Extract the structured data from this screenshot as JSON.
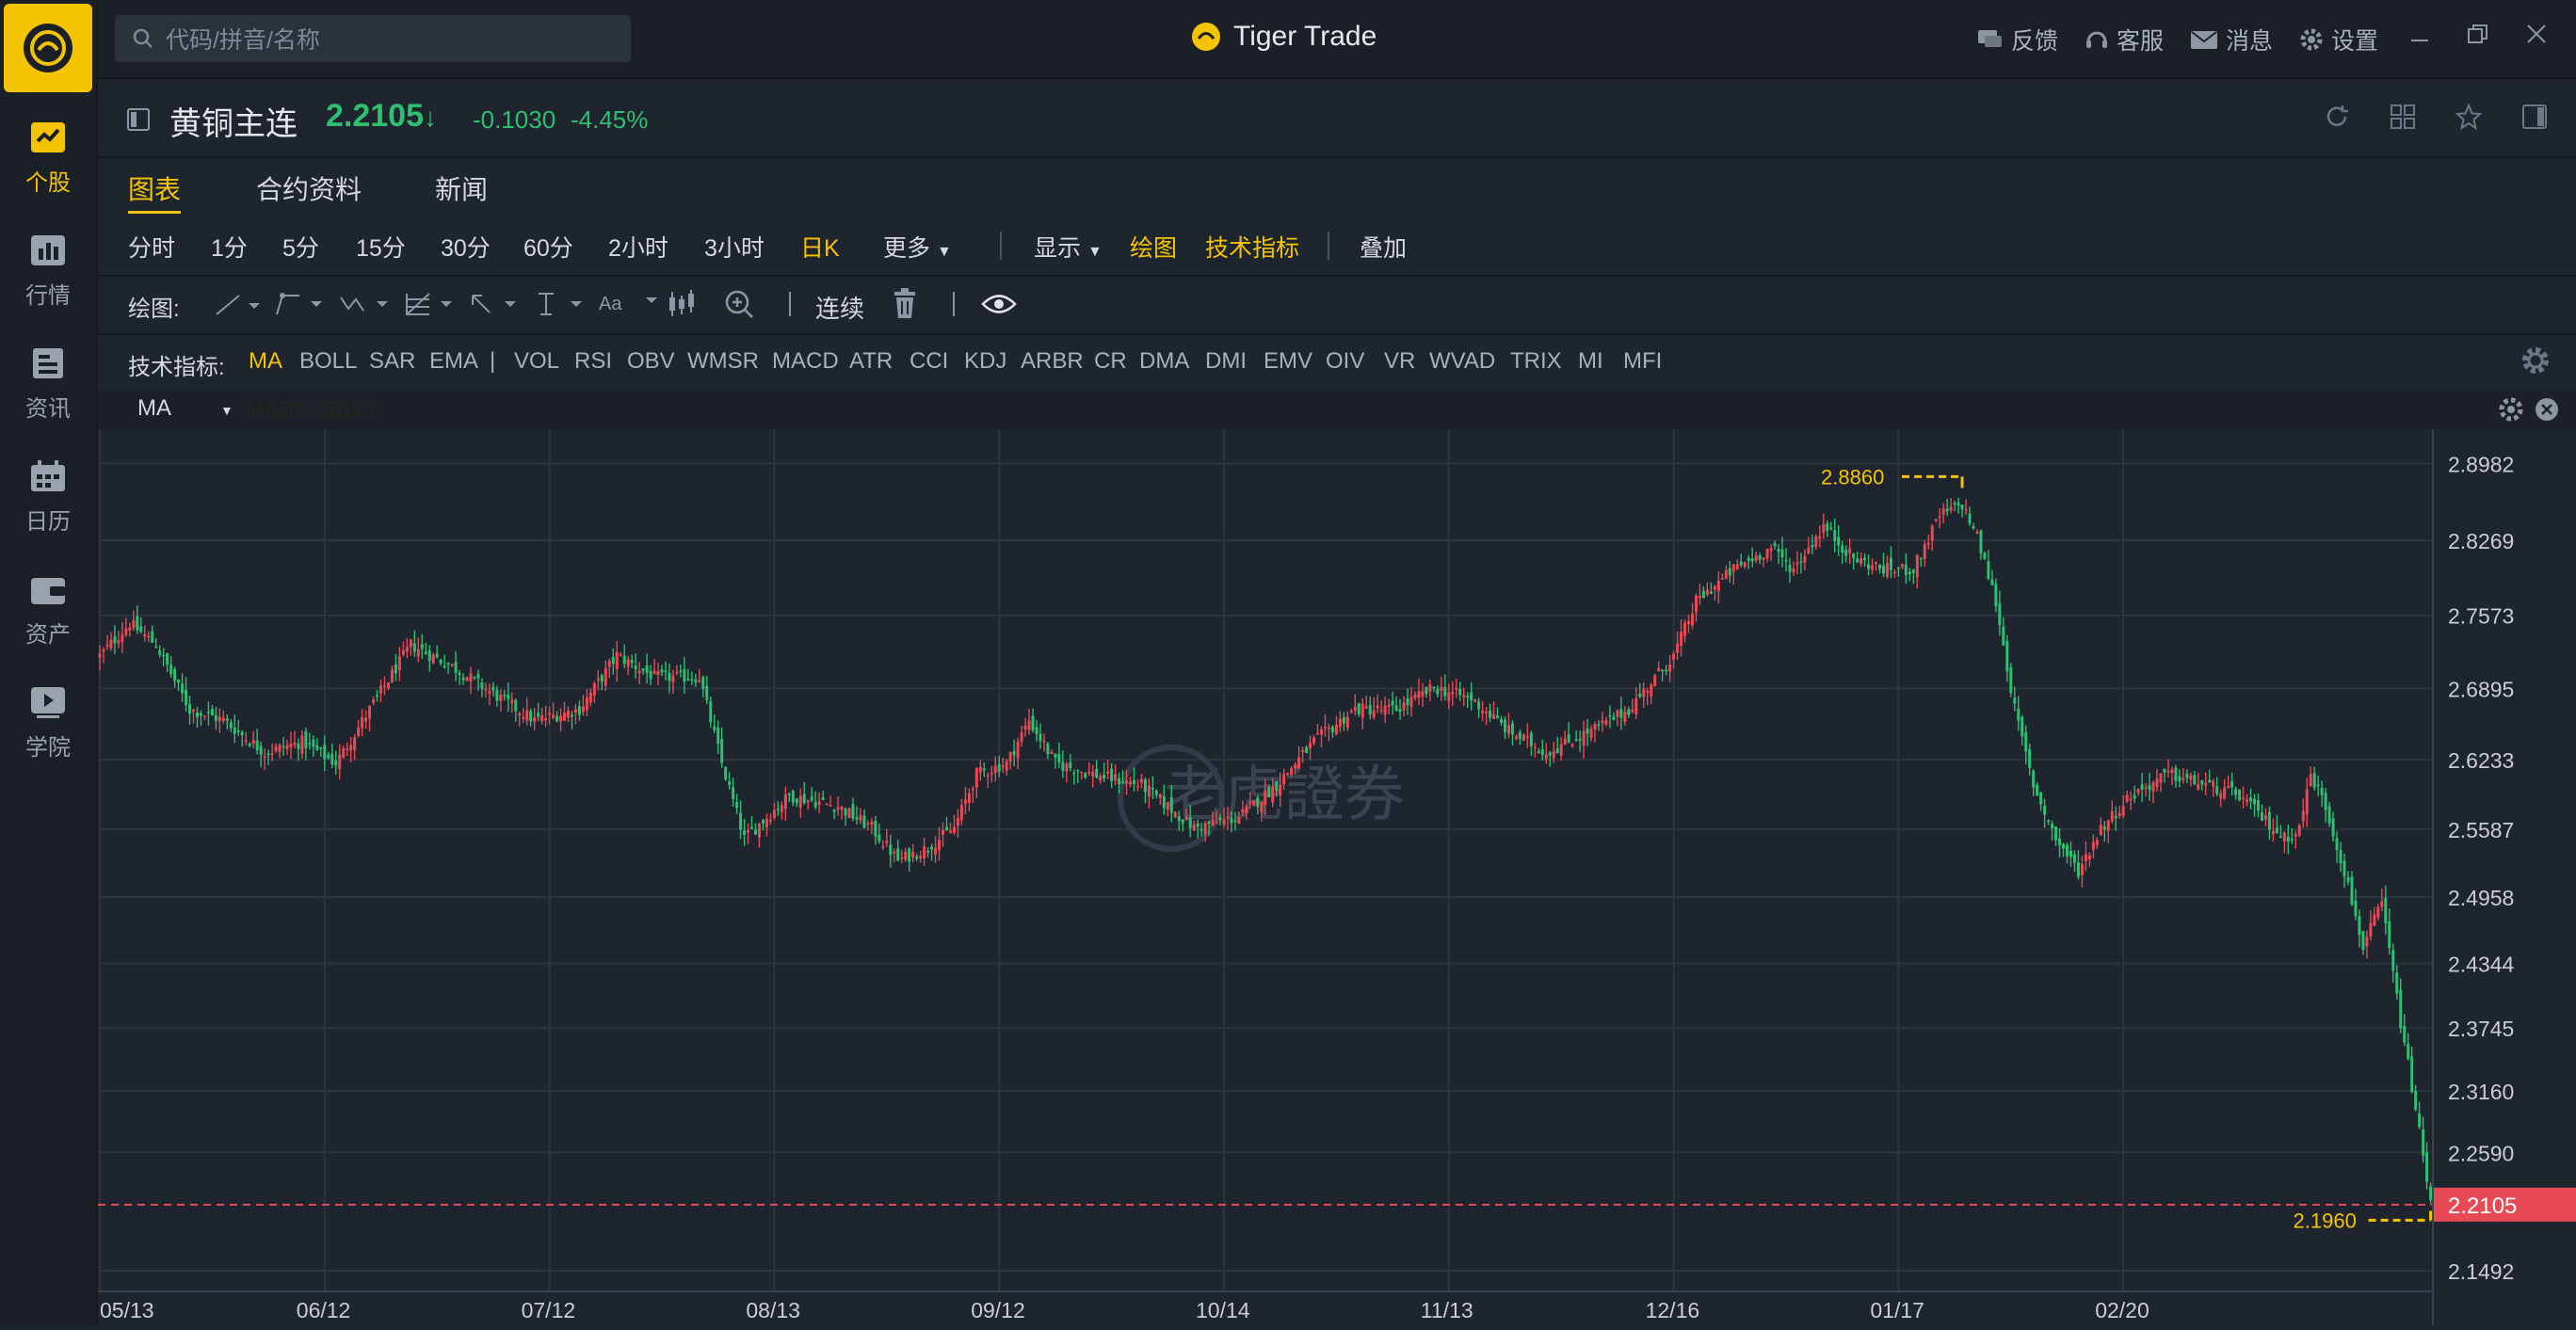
{
  "sidebar": {
    "items": [
      {
        "label": "个股",
        "icon": "stock-chart-icon",
        "active": true
      },
      {
        "label": "行情",
        "icon": "market-icon",
        "active": false
      },
      {
        "label": "资讯",
        "icon": "news-icon",
        "active": false
      },
      {
        "label": "日历",
        "icon": "calendar-icon",
        "active": false
      },
      {
        "label": "资产",
        "icon": "wallet-icon",
        "active": false
      },
      {
        "label": "学院",
        "icon": "play-icon",
        "active": false
      }
    ]
  },
  "topbar": {
    "search_placeholder": "代码/拼音/名称",
    "app_title": "Tiger Trade",
    "actions": [
      "反馈",
      "客服",
      "消息",
      "设置"
    ]
  },
  "quote": {
    "name": "黄铜主连",
    "price": "2.2105",
    "arrow": "↓",
    "change": "-0.1030",
    "change_pct": "-4.45%"
  },
  "tabs": [
    "图表",
    "合约资料",
    "新闻"
  ],
  "periods": [
    "分时",
    "1分",
    "5分",
    "15分",
    "30分",
    "60分",
    "2小时",
    "3小时",
    "日K",
    "更多"
  ],
  "display_menu": {
    "show": "显示",
    "draw": "绘图",
    "indicators": "技术指标",
    "overlay": "叠加"
  },
  "drawbar": {
    "label": "绘图:",
    "continuous": "连续",
    "text_tool": "Aa"
  },
  "indicator_bar": {
    "label": "技术指标:",
    "items": [
      "MA",
      "BOLL",
      "SAR",
      "EMA",
      "|",
      "VOL",
      "RSI",
      "OBV",
      "WMSR",
      "MACD",
      "ATR",
      "CCI",
      "KDJ",
      "ARBR",
      "CR",
      "DMA",
      "DMI",
      "EMV",
      "OIV",
      "VR",
      "WVAD",
      "TRIX",
      "MI",
      "MFI"
    ]
  },
  "ma_bar": {
    "selected": "MA",
    "value": "MA20: 2.5116"
  },
  "watermark": "老虎證券",
  "colors": {
    "up": "#e84a55",
    "down": "#2fbf71",
    "accent": "#f5c400",
    "bg": "#1f252e"
  },
  "chart_data": {
    "type": "candlestick",
    "x_labels": [
      "05/13",
      "06/12",
      "07/12",
      "08/13",
      "09/12",
      "10/14",
      "11/13",
      "12/16",
      "01/17",
      "02/20"
    ],
    "y_ticks": [
      2.8982,
      2.8269,
      2.7573,
      2.6895,
      2.6233,
      2.5587,
      2.4958,
      2.4344,
      2.3745,
      2.316,
      2.259,
      2.2105,
      2.1492
    ],
    "y_range": [
      2.13,
      2.93
    ],
    "last_price": 2.2105,
    "high_marker": {
      "label": "2.8860",
      "value": 2.886
    },
    "low_marker": {
      "label": "2.1960",
      "value": 2.196
    },
    "close_path": [
      [
        0,
        2.72
      ],
      [
        8,
        2.75
      ],
      [
        15,
        2.73
      ],
      [
        24,
        2.67
      ],
      [
        33,
        2.66
      ],
      [
        44,
        2.63
      ],
      [
        54,
        2.64
      ],
      [
        63,
        2.62
      ],
      [
        72,
        2.67
      ],
      [
        83,
        2.73
      ],
      [
        94,
        2.71
      ],
      [
        107,
        2.68
      ],
      [
        116,
        2.66
      ],
      [
        128,
        2.67
      ],
      [
        138,
        2.72
      ],
      [
        148,
        2.7
      ],
      [
        160,
        2.7
      ],
      [
        166,
        2.62
      ],
      [
        172,
        2.55
      ],
      [
        184,
        2.59
      ],
      [
        197,
        2.58
      ],
      [
        206,
        2.56
      ],
      [
        213,
        2.53
      ],
      [
        220,
        2.54
      ],
      [
        228,
        2.56
      ],
      [
        234,
        2.61
      ],
      [
        242,
        2.62
      ],
      [
        248,
        2.66
      ],
      [
        255,
        2.62
      ],
      [
        265,
        2.61
      ],
      [
        278,
        2.6
      ],
      [
        292,
        2.56
      ],
      [
        304,
        2.57
      ],
      [
        314,
        2.6
      ],
      [
        324,
        2.64
      ],
      [
        335,
        2.67
      ],
      [
        346,
        2.67
      ],
      [
        356,
        2.69
      ],
      [
        366,
        2.68
      ],
      [
        376,
        2.65
      ],
      [
        386,
        2.63
      ],
      [
        398,
        2.65
      ],
      [
        408,
        2.67
      ],
      [
        420,
        2.72
      ],
      [
        426,
        2.77
      ],
      [
        436,
        2.8
      ],
      [
        446,
        2.82
      ],
      [
        452,
        2.8
      ],
      [
        460,
        2.84
      ],
      [
        468,
        2.81
      ],
      [
        476,
        2.8
      ],
      [
        484,
        2.8
      ],
      [
        491,
        2.85
      ],
      [
        497,
        2.86
      ],
      [
        501,
        2.83
      ],
      [
        506,
        2.77
      ],
      [
        511,
        2.67
      ],
      [
        516,
        2.6
      ],
      [
        522,
        2.55
      ],
      [
        528,
        2.52
      ],
      [
        534,
        2.56
      ],
      [
        542,
        2.59
      ],
      [
        552,
        2.61
      ],
      [
        562,
        2.6
      ],
      [
        571,
        2.59
      ],
      [
        577,
        2.57
      ],
      [
        583,
        2.55
      ],
      [
        587,
        2.56
      ],
      [
        590,
        2.61
      ],
      [
        594,
        2.58
      ],
      [
        599,
        2.52
      ],
      [
        604,
        2.45
      ],
      [
        609,
        2.49
      ],
      [
        614,
        2.38
      ],
      [
        618,
        2.3
      ],
      [
        622,
        2.2105
      ]
    ]
  }
}
